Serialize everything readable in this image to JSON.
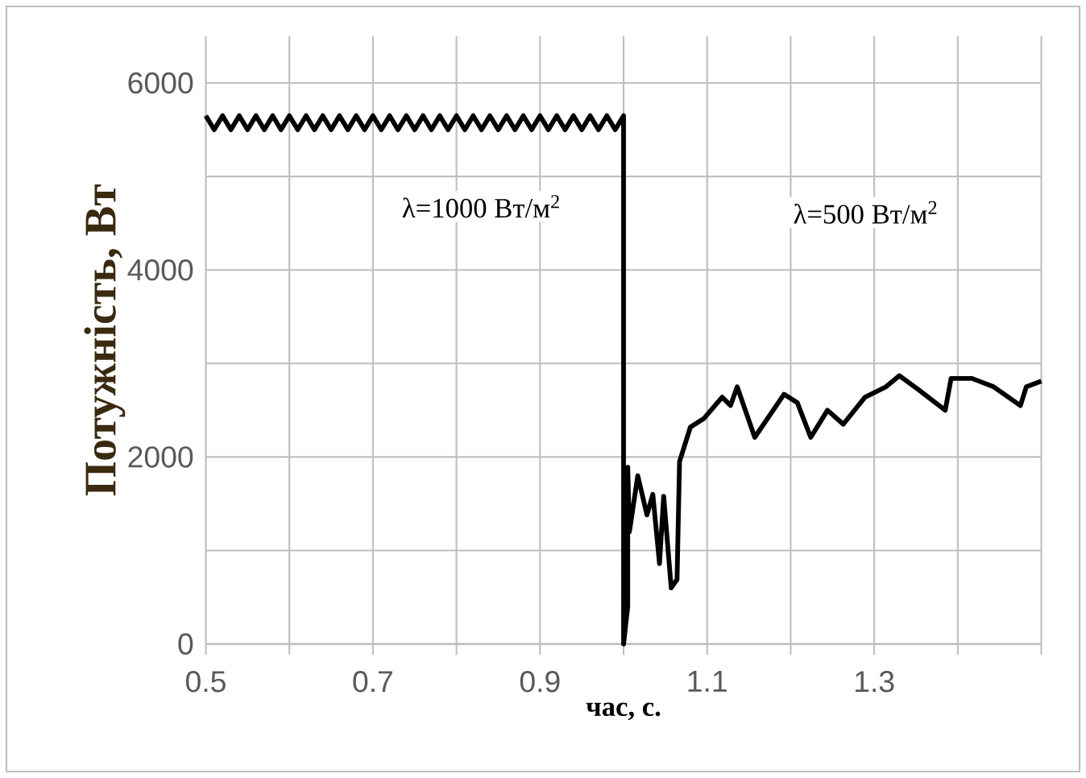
{
  "chart_data": {
    "type": "line",
    "xlabel": "час, с.",
    "ylabel": "Потужність, Вт",
    "annotations": [
      "λ=1000 Вт/м$^{2}$",
      "λ=500 Вт/м$^{2}$"
    ],
    "xlim": [
      0.5,
      1.5
    ],
    "ylim": [
      0,
      6500
    ],
    "xticks": [
      {
        "value": 0.5,
        "label": "0.5"
      },
      {
        "value": 0.6,
        "label": null
      },
      {
        "value": 0.7,
        "label": "0.7"
      },
      {
        "value": 0.8,
        "label": null
      },
      {
        "value": 0.9,
        "label": "0.9"
      },
      {
        "value": 1.0,
        "label": null
      },
      {
        "value": 1.1,
        "label": "1.1"
      },
      {
        "value": 1.2,
        "label": null
      },
      {
        "value": 1.3,
        "label": "1.3"
      },
      {
        "value": 1.4,
        "label": null
      },
      {
        "value": 1.5,
        "label": null
      }
    ],
    "yticks": [
      0,
      {
        "value": 1000,
        "label": null
      },
      2000,
      {
        "value": 3000,
        "label": null
      },
      4000,
      {
        "value": 5000,
        "label": null
      },
      6000
    ],
    "grid": true,
    "series": [
      {
        "color": "#000000",
        "x": [
          0.5,
          0.51,
          0.52,
          0.53,
          0.54,
          0.55,
          0.56,
          0.57,
          0.58,
          0.59,
          0.6,
          0.61,
          0.62,
          0.63,
          0.64,
          0.65,
          0.66,
          0.67,
          0.68,
          0.69,
          0.7,
          0.71,
          0.72,
          0.73,
          0.74,
          0.75,
          0.76,
          0.77,
          0.78,
          0.79,
          0.8,
          0.81,
          0.82,
          0.83,
          0.84,
          0.85,
          0.86,
          0.87,
          0.88,
          0.89,
          0.9,
          0.91,
          0.92,
          0.93,
          0.94,
          0.95,
          0.96,
          0.97,
          0.98,
          0.99,
          1.0,
          1.0,
          1.005,
          1.005,
          1.007,
          1.017,
          1.028,
          1.035,
          1.043,
          1.048,
          1.057,
          1.064,
          1.067,
          1.08,
          1.096,
          1.118,
          1.128,
          1.136,
          1.157,
          1.192,
          1.208,
          1.224,
          1.244,
          1.263,
          1.289,
          1.314,
          1.33,
          1.353,
          1.369,
          1.385,
          1.392,
          1.417,
          1.443,
          1.475,
          1.482,
          1.5
        ],
        "values": [
          5650,
          5500,
          5650,
          5500,
          5650,
          5500,
          5650,
          5500,
          5650,
          5500,
          5650,
          5500,
          5650,
          5500,
          5650,
          5500,
          5650,
          5500,
          5650,
          5500,
          5650,
          5500,
          5650,
          5500,
          5650,
          5500,
          5650,
          5500,
          5650,
          5500,
          5650,
          5500,
          5650,
          5500,
          5650,
          5500,
          5650,
          5500,
          5650,
          5500,
          5650,
          5500,
          5650,
          5500,
          5650,
          5500,
          5650,
          5500,
          5650,
          5500,
          5650,
          0,
          400,
          1890,
          1200,
          1800,
          1380,
          1600,
          860,
          1580,
          600,
          690,
          1950,
          2320,
          2410,
          2640,
          2550,
          2750,
          2210,
          2670,
          2580,
          2210,
          2500,
          2350,
          2640,
          2750,
          2870,
          2720,
          2610,
          2500,
          2840,
          2840,
          2750,
          2550,
          2750,
          2810
        ]
      }
    ]
  }
}
